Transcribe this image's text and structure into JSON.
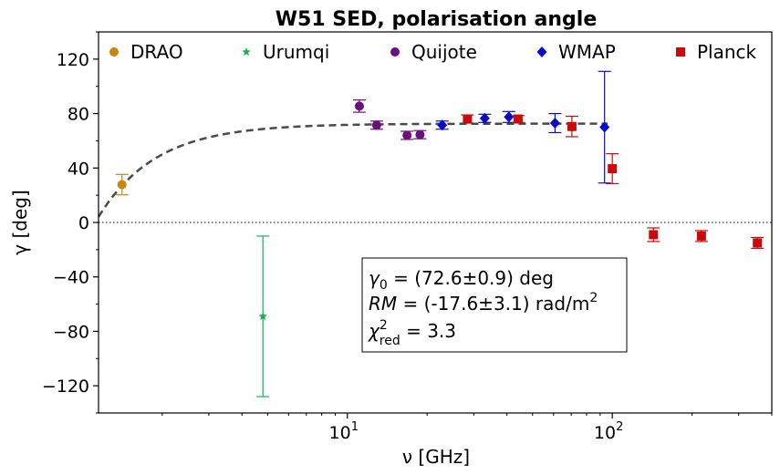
{
  "chart_data": {
    "type": "scatter",
    "title": "W51 SED, polarisation angle",
    "xlabel": "ν [GHz]",
    "ylabel": "γ [deg]",
    "xscale": "log",
    "xlim": [
      1.15,
      400
    ],
    "ylim": [
      -140,
      140
    ],
    "y_ticks": [
      -120,
      -80,
      -40,
      0,
      40,
      80,
      120
    ],
    "y_tick_labels": [
      "−120",
      "−80",
      "−40",
      "0",
      "40",
      "80",
      "120"
    ],
    "x_ticks": [
      10,
      100
    ],
    "x_tick_base": "10",
    "x_tick_exponents": [
      "1",
      "2"
    ],
    "zero_line": 0,
    "legend_position": "top",
    "series": [
      {
        "name": "DRAO",
        "marker": "circle",
        "color": "#c8860c",
        "points": [
          {
            "x": 1.41,
            "y": 27.8,
            "err": 7.5
          }
        ]
      },
      {
        "name": "Urumqi",
        "marker": "star",
        "color": "#17b34e",
        "points": [
          {
            "x": 4.8,
            "y": -69,
            "err": 59
          }
        ]
      },
      {
        "name": "Quijote",
        "marker": "circle",
        "color": "#6a0f80",
        "points": [
          {
            "x": 11.1,
            "y": 85.5,
            "err": 4.5
          },
          {
            "x": 12.9,
            "y": 71.5,
            "err": 3.0
          },
          {
            "x": 16.8,
            "y": 64,
            "err": 3.0
          },
          {
            "x": 18.8,
            "y": 64.5,
            "err": 3.0
          }
        ]
      },
      {
        "name": "WMAP",
        "marker": "diamond",
        "color": "#0a0acc",
        "points": [
          {
            "x": 22.8,
            "y": 71.5,
            "err": 3.0
          },
          {
            "x": 33.0,
            "y": 76.5,
            "err": 3.0
          },
          {
            "x": 40.7,
            "y": 77.5,
            "err": 4.0
          },
          {
            "x": 60.8,
            "y": 73,
            "err": 7.0
          },
          {
            "x": 93.5,
            "y": 70,
            "err": 41
          }
        ]
      },
      {
        "name": "Planck",
        "marker": "square",
        "color": "#cc0a0a",
        "points": [
          {
            "x": 28.4,
            "y": 76,
            "err": 3.0
          },
          {
            "x": 44.1,
            "y": 76,
            "err": 2.5
          },
          {
            "x": 70.4,
            "y": 70.5,
            "err": 7.5
          },
          {
            "x": 100,
            "y": 39.5,
            "err": 11
          },
          {
            "x": 143,
            "y": -9,
            "err": 5
          },
          {
            "x": 217,
            "y": -10,
            "err": 4
          },
          {
            "x": 353,
            "y": -15,
            "err": 4
          }
        ]
      }
    ],
    "fit": {
      "gamma0": 72.6,
      "rm": -17.6,
      "style": "dashed",
      "color": "#4a4a4a"
    },
    "annotation": {
      "line1_pre": "γ",
      "line1_sub": "0",
      "line1_post": " = (72.6±0.9) deg",
      "line2_pre": "RM",
      "line2_post": " = (-17.6±3.1) rad/m",
      "line2_sup": "2",
      "line3_pre": "χ",
      "line3_sup": "2",
      "line3_sub": "red",
      "line3_post": " = 3.3"
    }
  }
}
